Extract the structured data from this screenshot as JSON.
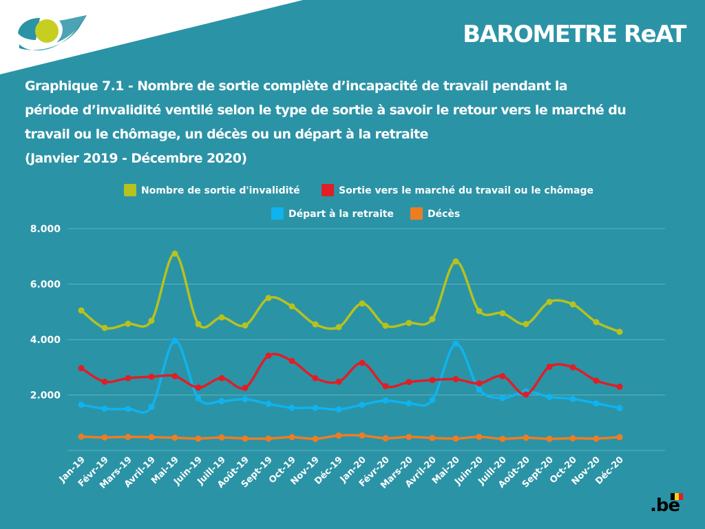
{
  "header": {
    "brand": "BAROMETRE ReAT",
    "title_lines": [
      "Graphique 7.1 - Nombre de sortie complète d’incapacité de travail pendant la",
      "période d’invalidité ventilé selon le type de sortie à savoir le retour vers le marché du",
      "travail ou le chômage, un décès ou un départ à la retraite",
      "(Janvier 2019 - Décembre 2020)"
    ]
  },
  "footer": {
    "logo_text": ".be"
  },
  "colors": {
    "background": "#2b93a6",
    "invalidite": "#b7c21e",
    "marche": "#e01e26",
    "retraite": "#0fb3ef",
    "deces": "#ee7d22"
  },
  "chart_data": {
    "type": "line",
    "categories": [
      "Jan-19",
      "Févr-19",
      "Mars-19",
      "Avril-19",
      "Mai-19",
      "Juin-19",
      "Juill-19",
      "Août-19",
      "Sept-19",
      "Oct-19",
      "Nov-19",
      "Déc-19",
      "Jan-20",
      "Févr-20",
      "Mars-20",
      "Avril-20",
      "Mai-20",
      "Juin-20",
      "Juill-20",
      "Août-20",
      "Sept-20",
      "Oct-20",
      "Nov-20",
      "Déc-20"
    ],
    "y_ticks": [
      "2.000",
      "4.000",
      "6.000",
      "8.000"
    ],
    "ylim": [
      0,
      8000
    ],
    "grid": true,
    "legend_position": "top",
    "series": [
      {
        "name": "Nombre de sortie d'invalidité",
        "color": "#b7c21e",
        "values": [
          5050,
          4420,
          4570,
          4680,
          7100,
          4560,
          4800,
          4510,
          5500,
          5200,
          4550,
          4450,
          5300,
          4500,
          4600,
          4740,
          6820,
          5030,
          4950,
          4560,
          5360,
          5270,
          4630,
          4280
        ]
      },
      {
        "name": "Sortie vers le marché du travail ou le chômage",
        "color": "#e01e26",
        "values": [
          2970,
          2480,
          2610,
          2660,
          2680,
          2270,
          2610,
          2260,
          3420,
          3230,
          2610,
          2480,
          3160,
          2320,
          2470,
          2540,
          2570,
          2420,
          2680,
          2020,
          3020,
          3000,
          2520,
          2300
        ]
      },
      {
        "name": "Départ à la retraite",
        "color": "#0fb3ef",
        "values": [
          1650,
          1510,
          1500,
          1570,
          3960,
          1880,
          1780,
          1850,
          1680,
          1540,
          1540,
          1480,
          1650,
          1800,
          1700,
          1820,
          3850,
          2200,
          1890,
          2130,
          1930,
          1860,
          1700,
          1530
        ]
      },
      {
        "name": "Décès",
        "color": "#ee7d22",
        "values": [
          500,
          470,
          490,
          480,
          460,
          430,
          470,
          430,
          430,
          480,
          420,
          540,
          540,
          440,
          490,
          450,
          430,
          490,
          420,
          460,
          420,
          440,
          430,
          480
        ]
      }
    ]
  }
}
